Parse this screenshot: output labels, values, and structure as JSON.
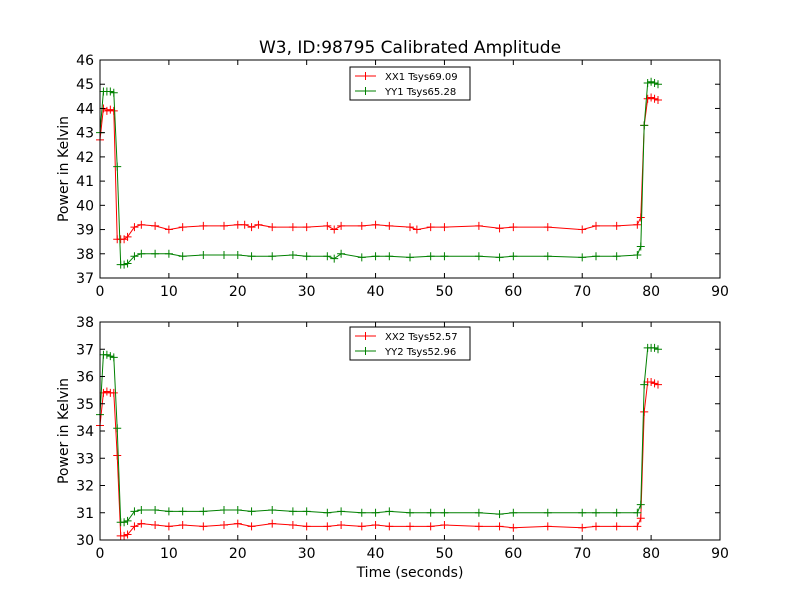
{
  "figure": {
    "title": "W3, ID:98795 Calibrated Amplitude",
    "xlabel": "Time (seconds)"
  },
  "chart_data": [
    {
      "type": "line",
      "title": "W3, ID:98795 Calibrated Amplitude",
      "xlabel": "",
      "ylabel": "Power in Kelvin",
      "xlim": [
        0,
        90
      ],
      "ylim": [
        37,
        46
      ],
      "xticks": [
        0,
        10,
        20,
        30,
        40,
        50,
        60,
        70,
        80,
        90
      ],
      "yticks": [
        37,
        38,
        39,
        40,
        41,
        42,
        43,
        44,
        45,
        46
      ],
      "grid": false,
      "legend_position": "top-center",
      "series": [
        {
          "name": "XX1 Tsys69.09",
          "color": "#ff0000",
          "x": [
            0.0,
            0.5,
            1.0,
            1.5,
            2.0,
            2.5,
            3.0,
            3.5,
            4.0,
            5.0,
            6.0,
            8.0,
            10.0,
            12.0,
            15.0,
            18.0,
            20.0,
            21.0,
            22.0,
            23.0,
            25.0,
            28.0,
            30.0,
            33.0,
            34.0,
            35.0,
            38.0,
            40.0,
            42.0,
            45.0,
            46.0,
            48.0,
            50.0,
            55.0,
            58.0,
            60.0,
            65.0,
            70.0,
            72.0,
            75.0,
            78.0,
            78.5,
            79.0,
            79.5,
            80.0,
            80.5,
            81.0
          ],
          "y": [
            42.7,
            44.0,
            43.9,
            43.95,
            43.9,
            38.6,
            38.6,
            38.6,
            38.7,
            39.1,
            39.2,
            39.15,
            39.0,
            39.1,
            39.15,
            39.15,
            39.2,
            39.2,
            39.1,
            39.2,
            39.1,
            39.1,
            39.1,
            39.15,
            39.0,
            39.15,
            39.15,
            39.2,
            39.15,
            39.1,
            39.0,
            39.1,
            39.1,
            39.15,
            39.05,
            39.1,
            39.1,
            39.0,
            39.15,
            39.15,
            39.2,
            39.5,
            43.3,
            44.4,
            44.45,
            44.4,
            44.35
          ]
        },
        {
          "name": "YY1 Tsys65.28",
          "color": "#008000",
          "x": [
            0.0,
            0.5,
            1.0,
            1.5,
            2.0,
            2.5,
            3.0,
            3.5,
            4.0,
            5.0,
            6.0,
            8.0,
            10.0,
            12.0,
            15.0,
            18.0,
            20.0,
            22.0,
            25.0,
            28.0,
            30.0,
            33.0,
            34.0,
            35.0,
            38.0,
            40.0,
            42.0,
            45.0,
            48.0,
            50.0,
            55.0,
            58.0,
            60.0,
            65.0,
            70.0,
            72.0,
            75.0,
            78.0,
            78.5,
            79.0,
            79.5,
            80.0,
            80.5,
            81.0
          ],
          "y": [
            43.0,
            44.7,
            44.7,
            44.7,
            44.65,
            41.6,
            37.55,
            37.55,
            37.6,
            37.9,
            38.0,
            38.0,
            38.0,
            37.9,
            37.95,
            37.95,
            37.95,
            37.9,
            37.9,
            37.95,
            37.9,
            37.9,
            37.8,
            38.0,
            37.85,
            37.9,
            37.9,
            37.85,
            37.9,
            37.9,
            37.9,
            37.85,
            37.9,
            37.9,
            37.85,
            37.9,
            37.9,
            37.95,
            38.3,
            43.3,
            45.05,
            45.1,
            45.05,
            45.0
          ]
        }
      ]
    },
    {
      "type": "line",
      "title": "",
      "xlabel": "Time (seconds)",
      "ylabel": "Power in Kelvin",
      "xlim": [
        0,
        90
      ],
      "ylim": [
        30,
        38
      ],
      "xticks": [
        0,
        10,
        20,
        30,
        40,
        50,
        60,
        70,
        80,
        90
      ],
      "yticks": [
        30,
        31,
        32,
        33,
        34,
        35,
        36,
        37,
        38
      ],
      "grid": false,
      "legend_position": "top-center",
      "series": [
        {
          "name": "XX2 Tsys52.57",
          "color": "#ff0000",
          "x": [
            0.0,
            0.5,
            1.0,
            1.5,
            2.0,
            2.5,
            3.0,
            3.5,
            4.0,
            5.0,
            6.0,
            8.0,
            10.0,
            12.0,
            15.0,
            18.0,
            20.0,
            22.0,
            25.0,
            28.0,
            30.0,
            33.0,
            35.0,
            38.0,
            40.0,
            42.0,
            45.0,
            48.0,
            50.0,
            55.0,
            58.0,
            60.0,
            65.0,
            70.0,
            72.0,
            75.0,
            78.0,
            78.5,
            79.0,
            79.5,
            80.0,
            80.5,
            81.0
          ],
          "y": [
            34.2,
            35.4,
            35.45,
            35.4,
            35.4,
            33.1,
            30.15,
            30.15,
            30.2,
            30.5,
            30.6,
            30.55,
            30.5,
            30.55,
            30.5,
            30.55,
            30.6,
            30.5,
            30.6,
            30.55,
            30.5,
            30.5,
            30.55,
            30.5,
            30.55,
            30.5,
            30.5,
            30.5,
            30.55,
            30.5,
            30.5,
            30.45,
            30.5,
            30.45,
            30.5,
            30.5,
            30.5,
            30.8,
            34.7,
            35.8,
            35.8,
            35.75,
            35.7
          ]
        },
        {
          "name": "YY2 Tsys52.96",
          "color": "#008000",
          "x": [
            0.0,
            0.5,
            1.0,
            1.5,
            2.0,
            2.5,
            3.0,
            3.5,
            4.0,
            5.0,
            6.0,
            8.0,
            10.0,
            12.0,
            15.0,
            18.0,
            20.0,
            22.0,
            25.0,
            28.0,
            30.0,
            33.0,
            35.0,
            38.0,
            40.0,
            42.0,
            45.0,
            48.0,
            50.0,
            55.0,
            58.0,
            60.0,
            65.0,
            70.0,
            72.0,
            75.0,
            78.0,
            78.5,
            79.0,
            79.5,
            80.0,
            80.5,
            81.0
          ],
          "y": [
            34.6,
            36.8,
            36.8,
            36.75,
            36.7,
            34.1,
            30.65,
            30.65,
            30.7,
            31.05,
            31.1,
            31.1,
            31.05,
            31.05,
            31.05,
            31.1,
            31.1,
            31.05,
            31.1,
            31.05,
            31.05,
            31.0,
            31.05,
            31.0,
            31.0,
            31.05,
            31.0,
            31.0,
            31.0,
            31.0,
            30.95,
            31.0,
            31.0,
            31.0,
            31.0,
            31.0,
            31.0,
            31.3,
            35.7,
            37.05,
            37.05,
            37.05,
            37.0
          ]
        }
      ]
    }
  ]
}
